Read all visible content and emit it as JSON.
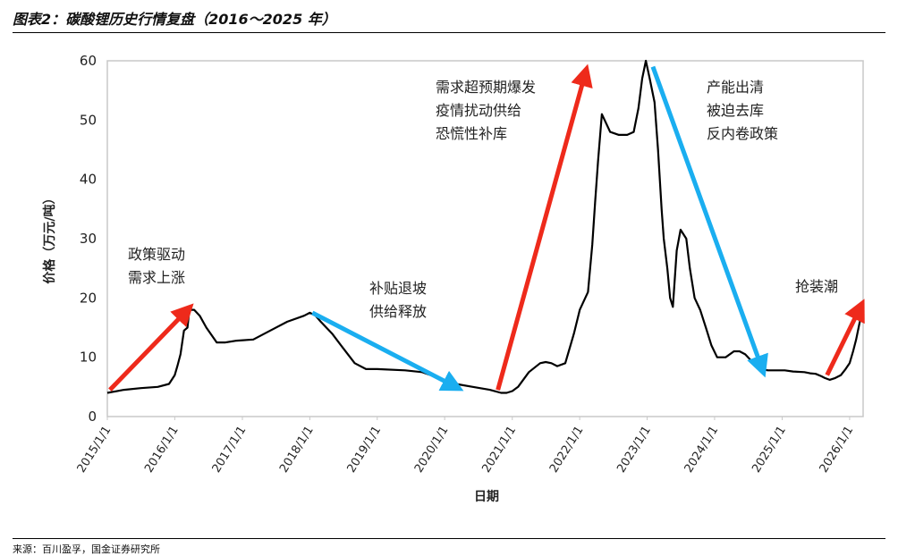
{
  "figure": {
    "title": "图表2：碳酸锂历史行情复盘（2016～2025 年）",
    "source": "来源：百川盈孚，国金证券研究所"
  },
  "colors": {
    "line": "#000000",
    "up_arrow": "#ee2a1b",
    "down_arrow": "#1aaef0",
    "frame": "#c8c8c8"
  },
  "chart_data": {
    "type": "line",
    "xlabel": "日期",
    "ylabel": "价格（万元/吨）",
    "ylim": [
      0,
      60
    ],
    "yticks": [
      0,
      10,
      20,
      30,
      40,
      50,
      60
    ],
    "xlim": [
      "2015-01-01",
      "2026-03-15"
    ],
    "xticks": [
      "2015/1/1",
      "2016/1/1",
      "2017/1/1",
      "2018/1/1",
      "2019/1/1",
      "2020/1/1",
      "2021/1/1",
      "2022/1/1",
      "2023/1/1",
      "2024/1/1",
      "2025/1/1",
      "2026/1/1"
    ],
    "grid": false,
    "series": [
      {
        "x": [
          "2015-01-01",
          "2015-04-01",
          "2015-07-01",
          "2015-10-01",
          "2015-12-01",
          "2016-01-01",
          "2016-01-15",
          "2016-02-01",
          "2016-02-20",
          "2016-03-10",
          "2016-03-20",
          "2016-04-15",
          "2016-05-15",
          "2016-06-20",
          "2016-08-15",
          "2016-10-01",
          "2016-12-01",
          "2017-03-01",
          "2017-06-01",
          "2017-09-01",
          "2017-12-01",
          "2018-01-01",
          "2018-02-01",
          "2018-03-01",
          "2018-05-01",
          "2018-07-01",
          "2018-09-01",
          "2018-11-01",
          "2019-01-01",
          "2019-06-01",
          "2019-09-01",
          "2019-12-01",
          "2020-03-01",
          "2020-06-01",
          "2020-09-01",
          "2020-11-01",
          "2020-12-01",
          "2021-01-01",
          "2021-02-01",
          "2021-04-01",
          "2021-06-01",
          "2021-07-01",
          "2021-08-01",
          "2021-09-01",
          "2021-10-15",
          "2021-12-01",
          "2022-01-01",
          "2022-02-15",
          "2022-03-10",
          "2022-03-25",
          "2022-04-10",
          "2022-05-01",
          "2022-06-15",
          "2022-08-01",
          "2022-09-15",
          "2022-10-20",
          "2022-11-15",
          "2022-12-05",
          "2022-12-25",
          "2023-01-15",
          "2023-02-10",
          "2023-03-01",
          "2023-03-20",
          "2023-04-01",
          "2023-04-20",
          "2023-05-05",
          "2023-05-20",
          "2023-06-10",
          "2023-07-01",
          "2023-08-01",
          "2023-08-20",
          "2023-09-15",
          "2023-10-15",
          "2023-11-15",
          "2023-12-15",
          "2024-01-15",
          "2024-03-01",
          "2024-04-15",
          "2024-05-15",
          "2024-06-15",
          "2024-07-15",
          "2024-08-15",
          "2024-09-15",
          "2024-10-15",
          "2024-11-15",
          "2024-12-15",
          "2025-01-15",
          "2025-03-01",
          "2025-05-01",
          "2025-06-01",
          "2025-07-01",
          "2025-08-01",
          "2025-08-20",
          "2025-09-15",
          "2025-10-15",
          "2025-11-15",
          "2025-12-10",
          "2026-01-01",
          "2026-01-20",
          "2026-02-05",
          "2026-02-25",
          "2026-03-10"
        ],
        "y": [
          4.0,
          4.5,
          4.8,
          5.0,
          5.5,
          7.0,
          8.5,
          10.5,
          14.5,
          15.0,
          18.0,
          18.0,
          17.0,
          15.0,
          12.5,
          12.5,
          12.8,
          13.0,
          14.5,
          16.0,
          17.0,
          17.5,
          17.0,
          16.0,
          14.0,
          11.5,
          9.0,
          8.0,
          8.0,
          7.8,
          7.5,
          6.5,
          5.5,
          5.0,
          4.5,
          4.0,
          4.0,
          4.3,
          5.0,
          7.5,
          9.0,
          9.2,
          9.0,
          8.5,
          9.0,
          14.0,
          18.0,
          21.0,
          29.0,
          36.0,
          43.0,
          51.0,
          48.0,
          47.5,
          47.5,
          48.0,
          52.0,
          57.0,
          60.0,
          57.0,
          53.0,
          45.0,
          35.0,
          30.0,
          25.0,
          20.0,
          18.5,
          28.0,
          31.5,
          30.0,
          25.0,
          20.0,
          18.0,
          15.0,
          12.0,
          10.0,
          10.0,
          11.0,
          11.0,
          10.5,
          9.5,
          8.5,
          8.0,
          7.8,
          7.8,
          7.8,
          7.8,
          7.6,
          7.5,
          7.3,
          7.2,
          6.8,
          6.5,
          6.2,
          6.5,
          7.0,
          8.0,
          9.0,
          11.0,
          13.0,
          16.0,
          17.5
        ]
      }
    ],
    "annotations": [
      {
        "lines": [
          "政策驱动",
          "需求上涨"
        ]
      },
      {
        "lines": [
          "补贴退坡",
          "供给释放"
        ]
      },
      {
        "lines": [
          "需求超预期爆发",
          "疫情扰动供给",
          "恐慌性补库"
        ]
      },
      {
        "lines": [
          "产能出清",
          "被迫去库",
          "反内卷政策"
        ]
      },
      {
        "lines": [
          "抢装潮"
        ]
      }
    ],
    "arrows": [
      {
        "direction": "up",
        "from": [
          "2015-01-15",
          4.5
        ],
        "to": [
          "2016-03-10",
          18.0
        ]
      },
      {
        "direction": "down",
        "from": [
          "2018-01-15",
          17.5
        ],
        "to": [
          "2020-03-01",
          5.0
        ]
      },
      {
        "direction": "up",
        "from": [
          "2020-10-15",
          4.5
        ],
        "to": [
          "2022-02-01",
          58.0
        ]
      },
      {
        "direction": "down",
        "from": [
          "2023-02-01",
          59.0
        ],
        "to": [
          "2024-09-15",
          8.0
        ]
      },
      {
        "direction": "up",
        "from": [
          "2025-09-01",
          7.0
        ],
        "to": [
          "2026-03-01",
          18.5
        ]
      }
    ]
  }
}
